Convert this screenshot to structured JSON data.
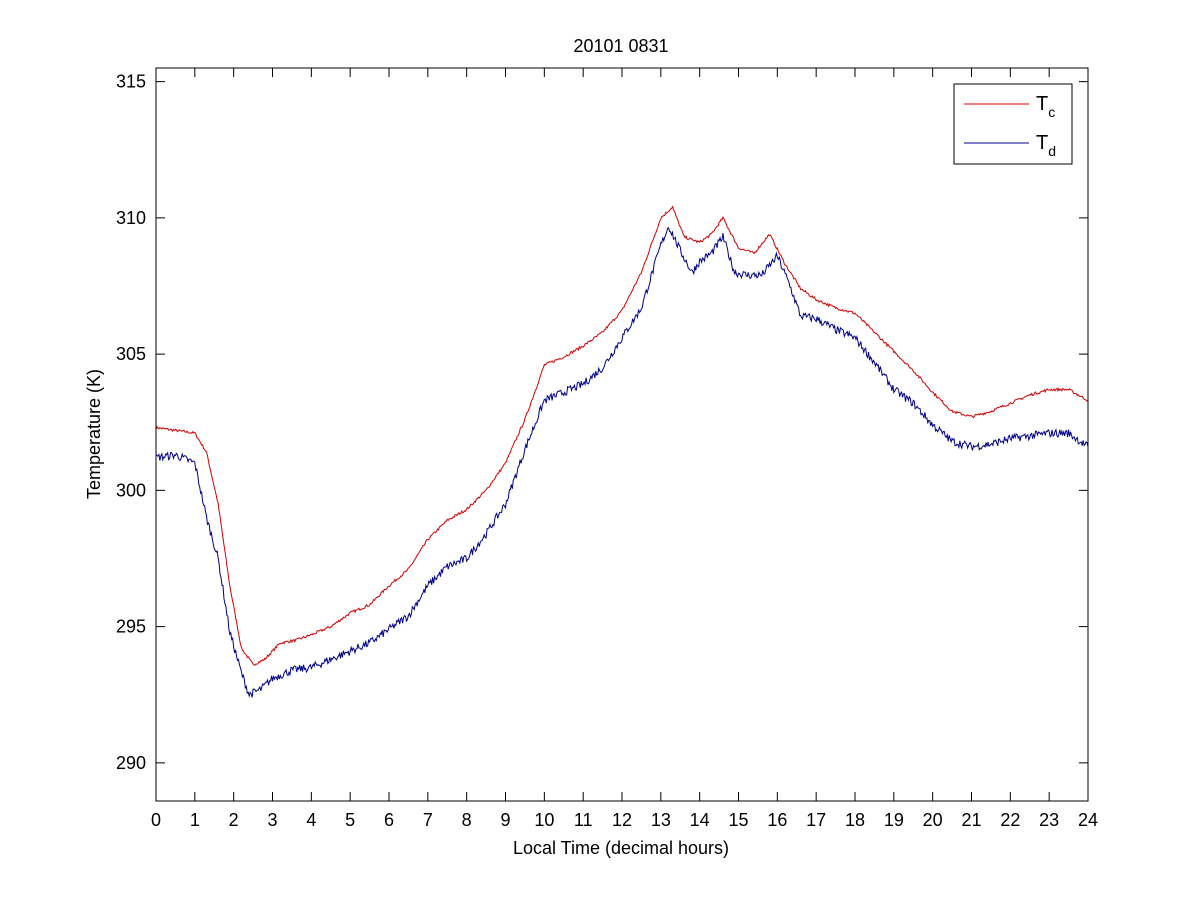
{
  "chart_data": {
    "type": "line",
    "title": "20101 0831",
    "xlabel": "Local Time (decimal hours)",
    "ylabel": "Temperature (K)",
    "xlim": [
      0,
      24
    ],
    "ylim": [
      288.6,
      315.5
    ],
    "xticks": [
      0,
      1,
      2,
      3,
      4,
      5,
      6,
      7,
      8,
      9,
      10,
      11,
      12,
      13,
      14,
      15,
      16,
      17,
      18,
      19,
      20,
      21,
      22,
      23,
      24
    ],
    "yticks": [
      290,
      295,
      300,
      305,
      310,
      315
    ],
    "grid": false,
    "legend_position": "top-right",
    "series": [
      {
        "name": "Tc",
        "legend_main": "T",
        "legend_sub": "c",
        "color": "#d40000",
        "x": [
          0,
          0.5,
          1.0,
          1.3,
          1.6,
          1.9,
          2.2,
          2.5,
          2.8,
          3.2,
          3.6,
          4.0,
          4.5,
          5.0,
          5.5,
          6.0,
          6.5,
          7.0,
          7.5,
          8.0,
          8.5,
          9.0,
          9.5,
          10.0,
          10.5,
          11.0,
          11.5,
          12.0,
          12.5,
          13.0,
          13.3,
          13.6,
          14.0,
          14.3,
          14.6,
          15.0,
          15.4,
          15.8,
          16.2,
          16.6,
          17.0,
          17.5,
          18.0,
          18.5,
          19.0,
          19.5,
          20.0,
          20.5,
          21.0,
          21.5,
          22.0,
          22.5,
          23.0,
          23.5,
          24.0
        ],
        "y": [
          302.3,
          302.2,
          302.1,
          301.4,
          299.5,
          296.5,
          294.2,
          293.6,
          293.8,
          294.4,
          294.5,
          294.7,
          295.0,
          295.5,
          295.8,
          296.5,
          297.1,
          298.2,
          298.9,
          299.3,
          300.0,
          301.0,
          302.6,
          304.6,
          304.9,
          305.3,
          305.8,
          306.6,
          308.0,
          310.0,
          310.4,
          309.3,
          309.1,
          309.4,
          310.0,
          308.9,
          308.7,
          309.4,
          308.3,
          307.4,
          307.0,
          306.7,
          306.5,
          305.8,
          305.1,
          304.4,
          303.6,
          302.9,
          302.7,
          302.9,
          303.2,
          303.5,
          303.7,
          303.7,
          303.3
        ]
      },
      {
        "name": "Td",
        "legend_main": "T",
        "legend_sub": "d",
        "color": "#00008b",
        "x": [
          0,
          0.5,
          1.0,
          1.3,
          1.6,
          1.9,
          2.2,
          2.4,
          2.7,
          3.0,
          3.5,
          4.0,
          4.5,
          5.0,
          5.5,
          6.0,
          6.5,
          7.0,
          7.5,
          8.0,
          8.5,
          9.0,
          9.5,
          10.0,
          10.5,
          11.0,
          11.5,
          12.0,
          12.5,
          13.0,
          13.2,
          13.5,
          13.8,
          14.0,
          14.3,
          14.6,
          14.9,
          15.2,
          15.6,
          16.0,
          16.3,
          16.6,
          17.0,
          17.5,
          18.0,
          18.5,
          19.0,
          19.5,
          20.0,
          20.5,
          21.0,
          21.5,
          22.0,
          22.5,
          23.0,
          23.5,
          24.0
        ],
        "y": [
          301.2,
          301.3,
          301.0,
          299.0,
          297.5,
          294.8,
          293.3,
          292.5,
          292.7,
          293.1,
          293.4,
          293.5,
          293.8,
          294.1,
          294.4,
          294.9,
          295.4,
          296.5,
          297.2,
          297.5,
          298.4,
          299.5,
          301.5,
          303.3,
          303.6,
          303.9,
          304.5,
          305.6,
          306.7,
          309.0,
          309.7,
          308.8,
          308.0,
          308.4,
          308.7,
          309.3,
          308.0,
          307.9,
          307.9,
          308.6,
          307.6,
          306.4,
          306.3,
          305.9,
          305.6,
          304.7,
          303.7,
          303.2,
          302.4,
          301.8,
          301.6,
          301.7,
          301.9,
          302.0,
          302.1,
          302.1,
          301.6
        ]
      }
    ]
  }
}
